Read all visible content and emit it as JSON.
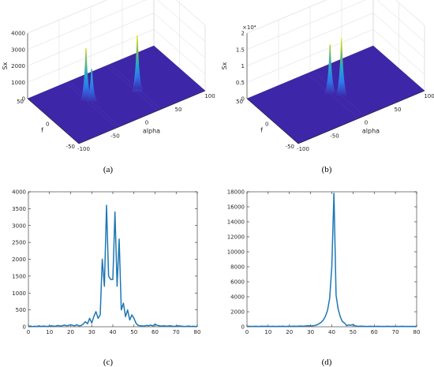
{
  "captions": [
    "(a)",
    "(b)",
    "(c)",
    "(d)"
  ],
  "colors": {
    "line": "#1f77b4",
    "surface_low": "#3e26a8",
    "surface_mid": "#1fb3c3",
    "surface_high": "#f9fb0e"
  },
  "chart_data": [
    {
      "type": "surface",
      "caption": "(a)",
      "zlabel": "Sx",
      "xlabel": "alpha",
      "ylabel": "f",
      "zticks": [
        "0",
        "1000",
        "2000",
        "3000",
        "4000"
      ],
      "xticks": [
        "-100",
        "-50",
        "0",
        "50",
        "100"
      ],
      "yticks": [
        "-50",
        "0",
        "50"
      ],
      "zlim": [
        0,
        4000
      ],
      "xlim": [
        -100,
        100
      ],
      "ylim": [
        -50,
        50
      ],
      "peaks": [
        {
          "alpha": -40,
          "f": 10,
          "value": 3200
        },
        {
          "alpha": -35,
          "f": 5,
          "value": 2000
        },
        {
          "alpha": 25,
          "f": -10,
          "value": 3500
        },
        {
          "alpha": 30,
          "f": -5,
          "value": 1500
        }
      ]
    },
    {
      "type": "surface",
      "caption": "(b)",
      "zlabel": "Sx",
      "xlabel": "alpha",
      "ylabel": "f",
      "zexponent": "×10⁴",
      "zticks": [
        "0",
        "0.5",
        "1",
        "1.5",
        "2"
      ],
      "xticks": [
        "-100",
        "-50",
        "0",
        "50",
        "100"
      ],
      "yticks": [
        "-50",
        "0",
        "50"
      ],
      "zlim": [
        0,
        20000
      ],
      "xlim": [
        -100,
        100
      ],
      "ylim": [
        -50,
        50
      ],
      "peaks": [
        {
          "alpha": -5,
          "f": 5,
          "value": 15000
        },
        {
          "alpha": 5,
          "f": -5,
          "value": 17500
        }
      ]
    },
    {
      "type": "line",
      "caption": "(c)",
      "xlim": [
        0,
        80
      ],
      "ylim": [
        0,
        4000
      ],
      "xticks": [
        "0",
        "10",
        "20",
        "30",
        "40",
        "50",
        "60",
        "70",
        "80"
      ],
      "yticks": [
        "0",
        "500",
        "1000",
        "1500",
        "2000",
        "2500",
        "3000",
        "3500",
        "4000"
      ],
      "x": [
        0,
        1,
        2,
        3,
        4,
        5,
        6,
        7,
        8,
        9,
        10,
        11,
        12,
        13,
        14,
        15,
        16,
        17,
        18,
        19,
        20,
        21,
        22,
        23,
        24,
        25,
        26,
        27,
        28,
        29,
        30,
        31,
        32,
        33,
        34,
        35,
        36,
        37,
        38,
        39,
        40,
        41,
        42,
        43,
        44,
        45,
        46,
        47,
        48,
        49,
        50,
        51,
        52,
        53,
        54,
        55,
        56,
        57,
        58,
        59,
        60,
        61,
        62,
        63,
        64,
        65,
        66,
        67,
        68,
        69,
        70,
        71,
        72,
        73,
        74,
        75,
        76,
        77,
        78,
        79,
        80
      ],
      "y": [
        10,
        20,
        5,
        15,
        10,
        25,
        10,
        20,
        15,
        10,
        20,
        30,
        15,
        20,
        40,
        20,
        30,
        50,
        30,
        40,
        60,
        40,
        30,
        60,
        20,
        40,
        80,
        150,
        90,
        250,
        110,
        300,
        450,
        250,
        350,
        2000,
        1200,
        3600,
        1500,
        1400,
        1400,
        3400,
        1200,
        2600,
        500,
        700,
        300,
        500,
        200,
        350,
        250,
        100,
        40,
        30,
        25,
        20,
        40,
        30,
        50,
        20,
        80,
        40,
        30,
        20,
        30,
        20,
        20,
        30,
        20,
        10,
        20,
        30,
        20,
        15,
        10,
        15,
        20,
        10,
        15,
        10,
        10
      ]
    },
    {
      "type": "line",
      "caption": "(d)",
      "xlim": [
        0,
        80
      ],
      "ylim": [
        0,
        18000
      ],
      "xticks": [
        "0",
        "10",
        "20",
        "30",
        "40",
        "50",
        "60",
        "70",
        "80"
      ],
      "yticks": [
        "0",
        "2000",
        "4000",
        "6000",
        "8000",
        "10000",
        "12000",
        "14000",
        "16000",
        "18000"
      ],
      "x": [
        0,
        1,
        2,
        3,
        4,
        5,
        6,
        7,
        8,
        9,
        10,
        11,
        12,
        13,
        14,
        15,
        16,
        17,
        18,
        19,
        20,
        21,
        22,
        23,
        24,
        25,
        26,
        27,
        28,
        29,
        30,
        31,
        32,
        33,
        34,
        35,
        36,
        37,
        38,
        39,
        40,
        41,
        42,
        43,
        44,
        45,
        46,
        47,
        48,
        49,
        50,
        51,
        52,
        53,
        54,
        55,
        56,
        57,
        58,
        59,
        60,
        61,
        62,
        63,
        64,
        65,
        66,
        67,
        68,
        69,
        70,
        71,
        72,
        73,
        74,
        75,
        76,
        77,
        78,
        79,
        80
      ],
      "y": [
        50,
        60,
        40,
        50,
        60,
        50,
        40,
        70,
        50,
        60,
        50,
        40,
        60,
        50,
        40,
        60,
        50,
        70,
        40,
        50,
        60,
        50,
        80,
        60,
        70,
        90,
        80,
        100,
        120,
        150,
        110,
        130,
        180,
        250,
        400,
        600,
        900,
        1400,
        2200,
        3800,
        8000,
        17800,
        4200,
        2300,
        1300,
        700,
        500,
        150,
        250,
        200,
        300,
        120,
        80,
        60,
        80,
        60,
        50,
        40,
        60,
        50,
        40,
        50,
        60,
        40,
        50,
        40,
        60,
        50,
        40,
        50,
        40,
        50,
        40,
        60,
        50,
        40,
        50,
        40,
        50,
        40,
        50
      ]
    }
  ]
}
